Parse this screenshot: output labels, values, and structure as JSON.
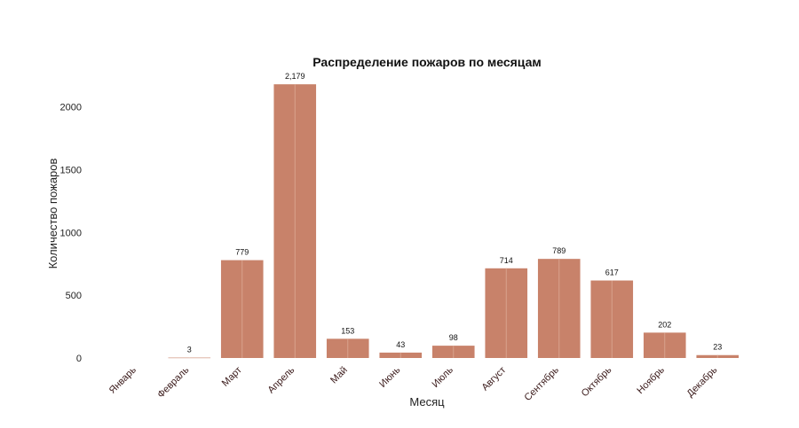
{
  "chart_data": {
    "type": "bar",
    "title": "Распределение пожаров по месяцам",
    "xlabel": "Месяц",
    "ylabel": "Количество пожаров",
    "categories": [
      "Январь",
      "Февраль",
      "Март",
      "Апрель",
      "Май",
      "Июнь",
      "Июль",
      "Август",
      "Сентябрь",
      "Октябрь",
      "Ноябрь",
      "Декабрь"
    ],
    "values": [
      0,
      3,
      779,
      2179,
      153,
      43,
      98,
      714,
      789,
      617,
      202,
      23
    ],
    "data_labels": [
      "",
      "3",
      "779",
      "2,179",
      "153",
      "43",
      "98",
      "714",
      "789",
      "617",
      "202",
      "23"
    ],
    "yticks": [
      0,
      500,
      1000,
      1500,
      2000
    ],
    "ylim": [
      0,
      2200
    ],
    "bar_color": "#c8826a",
    "bar_edge_color": "#d9a38d",
    "grid": false,
    "legend": "none"
  }
}
